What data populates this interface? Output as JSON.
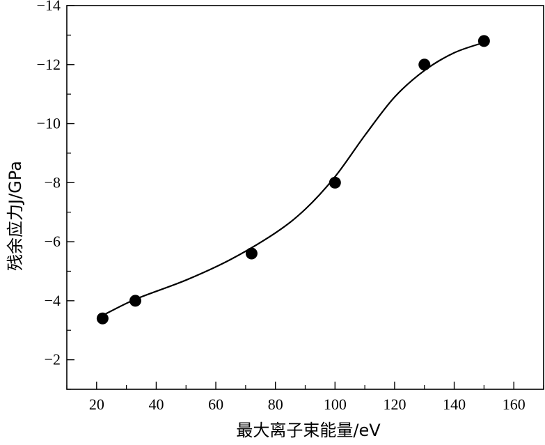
{
  "chart_data": {
    "type": "scatter",
    "title": "",
    "xlabel": "最大离子束能量/eV",
    "ylabel": "残余应力J/GPa",
    "xlim": [
      10,
      170
    ],
    "ylim": [
      -1,
      -14
    ],
    "xticks": [
      "20",
      "40",
      "60",
      "80",
      "100",
      "120",
      "140",
      "160"
    ],
    "yticks": [
      "-2",
      "-4",
      "-6",
      "-8",
      "-10",
      "-12",
      "-14"
    ],
    "grid": false,
    "series": [
      {
        "points": [
          {
            "x": 22,
            "y": -3.4
          },
          {
            "x": 33,
            "y": -4.0
          },
          {
            "x": 72,
            "y": -5.6
          },
          {
            "x": 100,
            "y": -8.0
          },
          {
            "x": 130,
            "y": -12.0
          },
          {
            "x": 150,
            "y": -12.8
          }
        ],
        "fit_curve": [
          {
            "x": 22,
            "y": -3.5
          },
          {
            "x": 33,
            "y": -4.05
          },
          {
            "x": 50,
            "y": -4.7
          },
          {
            "x": 65,
            "y": -5.4
          },
          {
            "x": 80,
            "y": -6.3
          },
          {
            "x": 90,
            "y": -7.1
          },
          {
            "x": 100,
            "y": -8.2
          },
          {
            "x": 110,
            "y": -9.6
          },
          {
            "x": 120,
            "y": -10.9
          },
          {
            "x": 130,
            "y": -11.8
          },
          {
            "x": 140,
            "y": -12.4
          },
          {
            "x": 150,
            "y": -12.75
          }
        ]
      }
    ]
  }
}
